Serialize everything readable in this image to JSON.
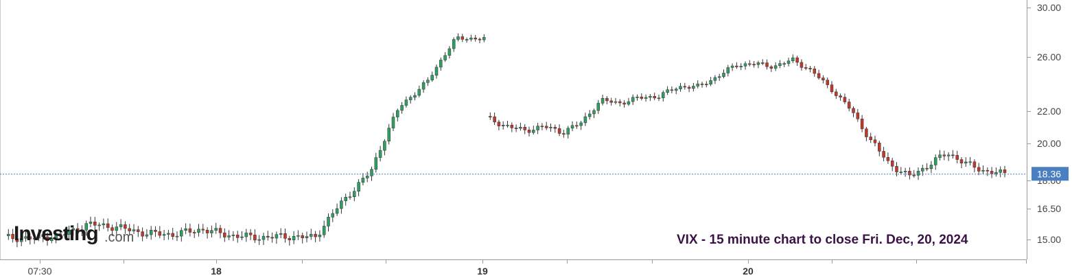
{
  "colors": {
    "up": "#2e9e62",
    "down": "#c0392b",
    "axis": "#999999",
    "current_line": "#4a7fc1",
    "current_label_bg": "#4a7fc1",
    "caption": "#3b1246"
  },
  "logo": {
    "brand": "Investing",
    "suffix": ".com"
  },
  "caption": "VIX - 15 minute chart to close Fri. Dec, 20, 2024",
  "current_price_label": "18.36",
  "chart_data": {
    "type": "candlestick",
    "title": "",
    "xlabel": "",
    "ylabel": "",
    "ylim": [
      14.2,
      30.3
    ],
    "y_ticks": [
      "30.00",
      "26.00",
      "22.00",
      "20.00",
      "18.00",
      "16.50",
      "15.00"
    ],
    "x_ticks": [
      {
        "label": "07:30",
        "bold": false
      },
      {
        "label": "18",
        "bold": true
      },
      {
        "label": "19",
        "bold": true
      },
      {
        "label": "20",
        "bold": true
      }
    ],
    "current_value": 18.36,
    "day_anchors": [
      15.1,
      15.05,
      15.2,
      15.75,
      15.6,
      15.3,
      15.25,
      15.5,
      15.2,
      15.1,
      15.15,
      15.1,
      16.9,
      18.5,
      22.3,
      24.2,
      27.5,
      27.5
    ],
    "day_anchors_2": [
      21.6,
      21.1,
      20.8,
      21.05,
      20.7,
      21.3,
      22.8,
      22.6,
      23.0,
      23.1,
      23.8,
      23.8,
      24.5,
      25.4,
      25.5,
      25.3,
      25.8,
      24.9,
      23.6,
      22.1,
      20.2,
      18.9,
      18.2,
      18.8,
      19.5,
      18.9,
      18.5,
      18.36
    ]
  }
}
